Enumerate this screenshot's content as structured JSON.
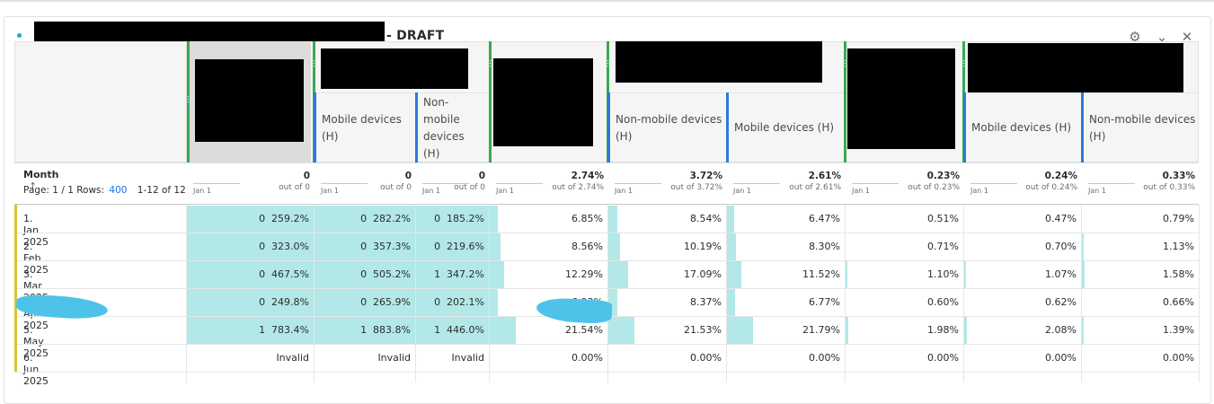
{
  "panel": {
    "title": "- DRAFT",
    "icons": [
      "gear-icon",
      "chevron-down-icon",
      "close-icon"
    ]
  },
  "headers": {
    "subheaders": {
      "c2": "Mobile devices (H)",
      "c3": "Non-mobile devices (H)",
      "c5": "Non-mobile devices (H)",
      "c6": "Mobile devices (H)",
      "c8": "Mobile devices (H)",
      "c9": "Non-mobile devices (H)"
    }
  },
  "dimension": {
    "label": "Month",
    "sort_icon": "arrow-up-icon",
    "page": "Page: 1 / 1",
    "rows_label": "Rows:",
    "rows_value": "400",
    "range": "1-12 of 12"
  },
  "summary": [
    {
      "value": "0",
      "of": "out of 0",
      "spark": "Jan 1"
    },
    {
      "value": "0",
      "of": "out of 0",
      "spark": "Jan 1"
    },
    {
      "value": "0",
      "of": "out of 0",
      "spark": "Jan 1"
    },
    {
      "value": "2.74%",
      "of": "out of 2.74%",
      "spark": "Jan 1"
    },
    {
      "value": "3.72%",
      "of": "out of 3.72%",
      "spark": "Jan 1"
    },
    {
      "value": "2.61%",
      "of": "out of 2.61%",
      "spark": "Jan 1"
    },
    {
      "value": "0.23%",
      "of": "out of 0.23%",
      "spark": "Jan 1"
    },
    {
      "value": "0.24%",
      "of": "out of 0.24%",
      "spark": "Jan 1"
    },
    {
      "value": "0.33%",
      "of": "out of 0.33%",
      "spark": "Jan 1"
    }
  ],
  "rows": [
    {
      "label": "1.  Jan 2025",
      "cells": [
        "0  259.2%",
        "0  282.2%",
        "0  185.2%",
        "6.85%",
        "8.54%",
        "6.47%",
        "0.51%",
        "0.47%",
        "0.79%"
      ],
      "fill": [
        1,
        1,
        1,
        0.07,
        0.08,
        0.06,
        0.0,
        0.0,
        0.0
      ]
    },
    {
      "label": "2.  Feb 2025",
      "cells": [
        "0  323.0%",
        "0  357.3%",
        "0  219.6%",
        "8.56%",
        "10.19%",
        "8.30%",
        "0.71%",
        "0.70%",
        "1.13%"
      ],
      "fill": [
        1,
        1,
        1,
        0.09,
        0.1,
        0.08,
        0.0,
        0.0,
        0.01
      ]
    },
    {
      "label": "3.  Mar 2025",
      "cells": [
        "0  467.5%",
        "0  505.2%",
        "1  347.2%",
        "12.29%",
        "17.09%",
        "11.52%",
        "1.10%",
        "1.07%",
        "1.58%"
      ],
      "fill": [
        1,
        1,
        1,
        0.12,
        0.17,
        0.12,
        0.01,
        0.01,
        0.02
      ]
    },
    {
      "label": "4.  Apr 2025",
      "cells": [
        "0  249.8%",
        "0  265.9%",
        "0  202.1%",
        "6.93%",
        "8.37%",
        "6.77%",
        "0.60%",
        "0.62%",
        "0.66%"
      ],
      "fill": [
        1,
        1,
        1,
        0.07,
        0.08,
        0.07,
        0.0,
        0.0,
        0.0
      ]
    },
    {
      "label": "5.  May 2025",
      "cells": [
        "1  783.4%",
        "1  883.8%",
        "1  446.0%",
        "21.54%",
        "21.53%",
        "21.79%",
        "1.98%",
        "2.08%",
        "1.39%"
      ],
      "fill": [
        1,
        1,
        1,
        0.22,
        0.22,
        0.22,
        0.02,
        0.02,
        0.01
      ]
    },
    {
      "label": "6.  Jun 2025",
      "cells": [
        "Invalid",
        "Invalid",
        "Invalid",
        "0.00%",
        "0.00%",
        "0.00%",
        "0.00%",
        "0.00%",
        "0.00%"
      ],
      "fill": [
        0,
        0,
        0,
        0,
        0,
        0,
        0,
        0,
        0
      ]
    }
  ],
  "colors": {
    "accent_teal": "#12b5cb",
    "bar_fill": "#b2e8e8",
    "group_green": "#3aa852",
    "segment_blue": "#2d7ad6",
    "row_marker": "#d7c63a",
    "link_blue": "#1473e6"
  }
}
